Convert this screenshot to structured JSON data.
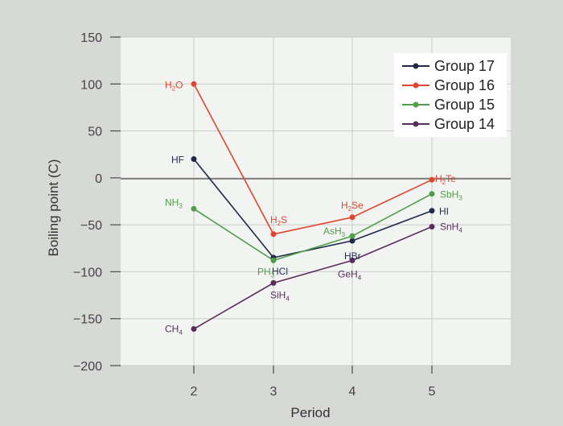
{
  "chart_data": {
    "type": "line",
    "xlabel": "Period",
    "ylabel": "Boiling point (C)",
    "x": [
      2,
      3,
      4,
      5
    ],
    "x_ticks": [
      "2",
      "3",
      "4",
      "5"
    ],
    "y_ticks": [
      "150",
      "100",
      "50",
      "0",
      "−50",
      "−100",
      "−150",
      "−200"
    ],
    "ylim": [
      -200,
      150
    ],
    "grid": true,
    "legend_position": "top-right",
    "series": [
      {
        "name": "Group 17",
        "color": "#1f2a4a",
        "values": [
          20,
          -85,
          -67,
          -35
        ],
        "labels": [
          {
            "main": "HF",
            "sub": ""
          },
          {
            "main": "HCl",
            "sub": ""
          },
          {
            "main": "HBr",
            "sub": ""
          },
          {
            "main": "HI",
            "sub": ""
          }
        ]
      },
      {
        "name": "Group 16",
        "color": "#e0452f",
        "values": [
          100,
          -60,
          -42,
          -2
        ],
        "labels": [
          {
            "main": "H",
            "sub": "2",
            "tail": "O"
          },
          {
            "main": "H",
            "sub": "2",
            "tail": "S"
          },
          {
            "main": "H",
            "sub": "2",
            "tail": "Se"
          },
          {
            "main": "H",
            "sub": "2",
            "tail": "Te"
          }
        ]
      },
      {
        "name": "Group 15",
        "color": "#4f9e4a",
        "values": [
          -33,
          -88,
          -62,
          -17
        ],
        "labels": [
          {
            "main": "NH",
            "sub": "3"
          },
          {
            "main": "PH",
            "sub": "3"
          },
          {
            "main": "AsH",
            "sub": "3"
          },
          {
            "main": "SbH",
            "sub": "3"
          }
        ]
      },
      {
        "name": "Group 14",
        "color": "#5a2d5e",
        "values": [
          -161,
          -112,
          -88,
          -52
        ],
        "labels": [
          {
            "main": "CH",
            "sub": "4"
          },
          {
            "main": "SiH",
            "sub": "4"
          },
          {
            "main": "GeH",
            "sub": "4"
          },
          {
            "main": "SnH",
            "sub": "4"
          }
        ]
      }
    ]
  }
}
